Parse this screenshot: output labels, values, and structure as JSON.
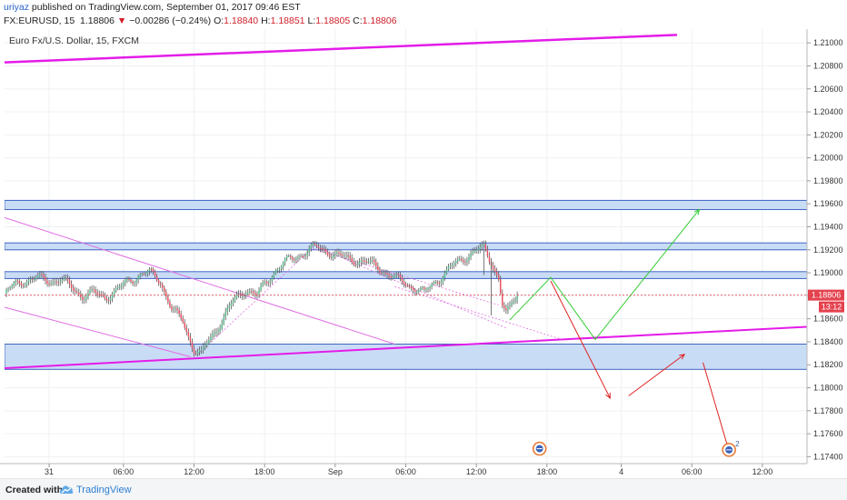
{
  "header": {
    "author": "uriyaz",
    "published_text": " published on TradingView.com, September 01, 2017 09:46 EST",
    "symbol": "FX:EURUSD, 15",
    "last": "1.18806",
    "change_arrow": "▼",
    "change": "−0.00286 (−0.24%)",
    "o_label": "O:",
    "o_val": "1.18840",
    "h_label": "H:",
    "h_val": "1.18851",
    "l_label": "L:",
    "l_val": "1.18805",
    "c_label": "C:",
    "c_val": "1.18806"
  },
  "chart_title": "Euro Fx/U.S. Dollar, 15, FXCM",
  "price_badge": "1.18806",
  "countdown_badge": "13:12",
  "event_badge": "2",
  "footer": {
    "created": "Created with",
    "brand": "TradingView",
    "logo_icon": "tradingview-cloud-icon"
  },
  "colors": {
    "up": "#53b987",
    "down": "#eb4d5c",
    "wick": "#555555",
    "zone_fill": "#c9dcf6",
    "zone_border": "#3f64c2",
    "magenta": "#e41ce8",
    "pink": "#e06fe3",
    "green": "#33cc33",
    "red": "#e02020",
    "badge_red": "#e4424e"
  },
  "chart_data": {
    "type": "candlestick",
    "y_axis": {
      "range": [
        1.1734,
        1.2112
      ],
      "ticks": [
        "1.17400",
        "1.17600",
        "1.17800",
        "1.18000",
        "1.18200",
        "1.18400",
        "1.18600",
        "1.18800",
        "1.19000",
        "1.19200",
        "1.19400",
        "1.19600",
        "1.19800",
        "1.20000",
        "1.20200",
        "1.20400",
        "1.20600",
        "1.20800",
        "1.21000"
      ]
    },
    "x_axis": {
      "range": [
        0,
        216
      ],
      "ticks": [
        {
          "label": "31",
          "x": 12
        },
        {
          "label": "06:00",
          "x": 32
        },
        {
          "label": "12:00",
          "x": 51
        },
        {
          "label": "18:00",
          "x": 70
        },
        {
          "label": "Sep",
          "x": 89
        },
        {
          "label": "06:00",
          "x": 108
        },
        {
          "label": "12:00",
          "x": 127
        },
        {
          "label": "18:00",
          "x": 146
        },
        {
          "label": "4",
          "x": 166
        },
        {
          "label": "06:00",
          "x": 185
        },
        {
          "label": "12:00",
          "x": 204
        }
      ]
    },
    "last_price": 1.18806,
    "close_path": [
      [
        0,
        1.1882
      ],
      [
        3,
        1.189
      ],
      [
        6,
        1.1894
      ],
      [
        9,
        1.1895
      ],
      [
        12,
        1.1893
      ],
      [
        15,
        1.1894
      ],
      [
        18,
        1.1887
      ],
      [
        21,
        1.188
      ],
      [
        24,
        1.1882
      ],
      [
        27,
        1.1879
      ],
      [
        30,
        1.1884
      ],
      [
        33,
        1.1892
      ],
      [
        36,
        1.1898
      ],
      [
        39,
        1.19
      ],
      [
        42,
        1.1893
      ],
      [
        45,
        1.1868
      ],
      [
        48,
        1.1858
      ],
      [
        51,
        1.1833
      ],
      [
        53,
        1.1829
      ],
      [
        55,
        1.1841
      ],
      [
        58,
        1.1856
      ],
      [
        61,
        1.1872
      ],
      [
        63,
        1.188
      ],
      [
        65,
        1.1886
      ],
      [
        68,
        1.188
      ],
      [
        70,
        1.189
      ],
      [
        73,
        1.1903
      ],
      [
        76,
        1.191
      ],
      [
        79,
        1.1915
      ],
      [
        82,
        1.192
      ],
      [
        84,
        1.1922
      ],
      [
        87,
        1.1919
      ],
      [
        90,
        1.1914
      ],
      [
        93,
        1.1912
      ],
      [
        96,
        1.191
      ],
      [
        99,
        1.1907
      ],
      [
        102,
        1.1902
      ],
      [
        105,
        1.1895
      ],
      [
        108,
        1.1891
      ],
      [
        111,
        1.1886
      ],
      [
        113,
        1.1882
      ],
      [
        115,
        1.189
      ],
      [
        118,
        1.1898
      ],
      [
        121,
        1.1907
      ],
      [
        124,
        1.1914
      ],
      [
        127,
        1.1919
      ],
      [
        129,
        1.1921
      ],
      [
        131,
        1.191
      ],
      [
        133,
        1.1895
      ],
      [
        134,
        1.1872
      ],
      [
        135,
        1.1864
      ],
      [
        136,
        1.1868
      ],
      [
        137,
        1.1876
      ],
      [
        138,
        1.18806
      ]
    ],
    "spikes": [
      [
        129,
        1.1898
      ],
      [
        131,
        1.1863
      ]
    ],
    "zones": [
      [
        1.1955,
        1.1963
      ],
      [
        1.192,
        1.1926
      ],
      [
        1.1895,
        1.1901
      ],
      [
        1.1816,
        1.1838
      ]
    ],
    "trendlines": [
      {
        "color": "magenta",
        "width": 2.5,
        "points": [
          [
            0,
            1.2083
          ],
          [
            181,
            1.2107
          ]
        ]
      },
      {
        "color": "magenta",
        "width": 2,
        "points": [
          [
            0,
            1.1817
          ],
          [
            216,
            1.1853
          ]
        ]
      },
      {
        "color": "pink",
        "width": 1,
        "points": [
          [
            0,
            1.1948
          ],
          [
            105,
            1.1838
          ]
        ]
      },
      {
        "color": "pink",
        "width": 1,
        "points": [
          [
            0,
            1.187
          ],
          [
            50,
            1.1827
          ]
        ]
      },
      {
        "color": "pink",
        "width": 0.8,
        "dash": "2,2",
        "points": [
          [
            52,
            1.1829
          ],
          [
            83,
            1.1922
          ]
        ]
      },
      {
        "color": "pink",
        "width": 0.8,
        "dash": "2,2",
        "points": [
          [
            85,
            1.1921
          ],
          [
            135,
            1.1852
          ]
        ]
      },
      {
        "color": "pink",
        "width": 0.8,
        "dash": "2,2",
        "points": [
          [
            105,
            1.1888
          ],
          [
            150,
            1.1842
          ]
        ]
      },
      {
        "color": "pink",
        "width": 0.8,
        "dash": "2,2",
        "points": [
          [
            83,
            1.1921
          ],
          [
            133,
            1.1872
          ]
        ]
      }
    ],
    "projections": [
      {
        "color": "green",
        "points": [
          [
            136,
            1.1859
          ],
          [
            147,
            1.1896
          ],
          [
            159,
            1.1842
          ],
          [
            187,
            1.1955
          ]
        ]
      },
      {
        "color": "red",
        "points": [
          [
            147,
            1.1893
          ],
          [
            163,
            1.1791
          ]
        ]
      },
      {
        "color": "red",
        "points": [
          [
            168,
            1.1793
          ],
          [
            183,
            1.1829
          ]
        ]
      },
      {
        "color": "red",
        "points": [
          [
            188,
            1.1822
          ],
          [
            195,
            1.1745
          ]
        ]
      }
    ],
    "event_markers": [
      {
        "x": 144,
        "y": 1.1747
      },
      {
        "x": 195,
        "y": 1.1746
      }
    ]
  }
}
